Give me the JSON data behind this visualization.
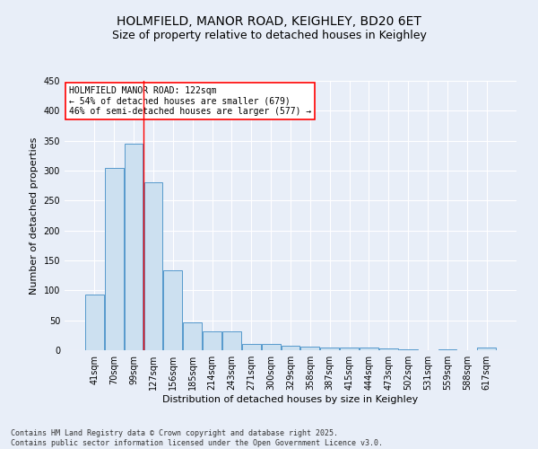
{
  "title_line1": "HOLMFIELD, MANOR ROAD, KEIGHLEY, BD20 6ET",
  "title_line2": "Size of property relative to detached houses in Keighley",
  "xlabel": "Distribution of detached houses by size in Keighley",
  "ylabel": "Number of detached properties",
  "categories": [
    "41sqm",
    "70sqm",
    "99sqm",
    "127sqm",
    "156sqm",
    "185sqm",
    "214sqm",
    "243sqm",
    "271sqm",
    "300sqm",
    "329sqm",
    "358sqm",
    "387sqm",
    "415sqm",
    "444sqm",
    "473sqm",
    "502sqm",
    "531sqm",
    "559sqm",
    "588sqm",
    "617sqm"
  ],
  "values": [
    93,
    304,
    345,
    280,
    134,
    46,
    31,
    31,
    10,
    10,
    7,
    6,
    4,
    4,
    4,
    3,
    1,
    0,
    1,
    0,
    4
  ],
  "bar_color": "#cce0f0",
  "bar_edge_color": "#5599cc",
  "vline_x": 2.5,
  "vline_color": "red",
  "annotation_title": "HOLMFIELD MANOR ROAD: 122sqm",
  "annotation_line1": "← 54% of detached houses are smaller (679)",
  "annotation_line2": "46% of semi-detached houses are larger (577) →",
  "annotation_box_color": "white",
  "annotation_box_edge": "red",
  "ylim": [
    0,
    450
  ],
  "yticks": [
    0,
    50,
    100,
    150,
    200,
    250,
    300,
    350,
    400,
    450
  ],
  "background_color": "#e8eef8",
  "plot_bg_color": "#e8eef8",
  "footer_line1": "Contains HM Land Registry data © Crown copyright and database right 2025.",
  "footer_line2": "Contains public sector information licensed under the Open Government Licence v3.0.",
  "title_fontsize": 10,
  "subtitle_fontsize": 9,
  "axis_label_fontsize": 8,
  "tick_fontsize": 7,
  "annotation_fontsize": 7,
  "footer_fontsize": 6
}
